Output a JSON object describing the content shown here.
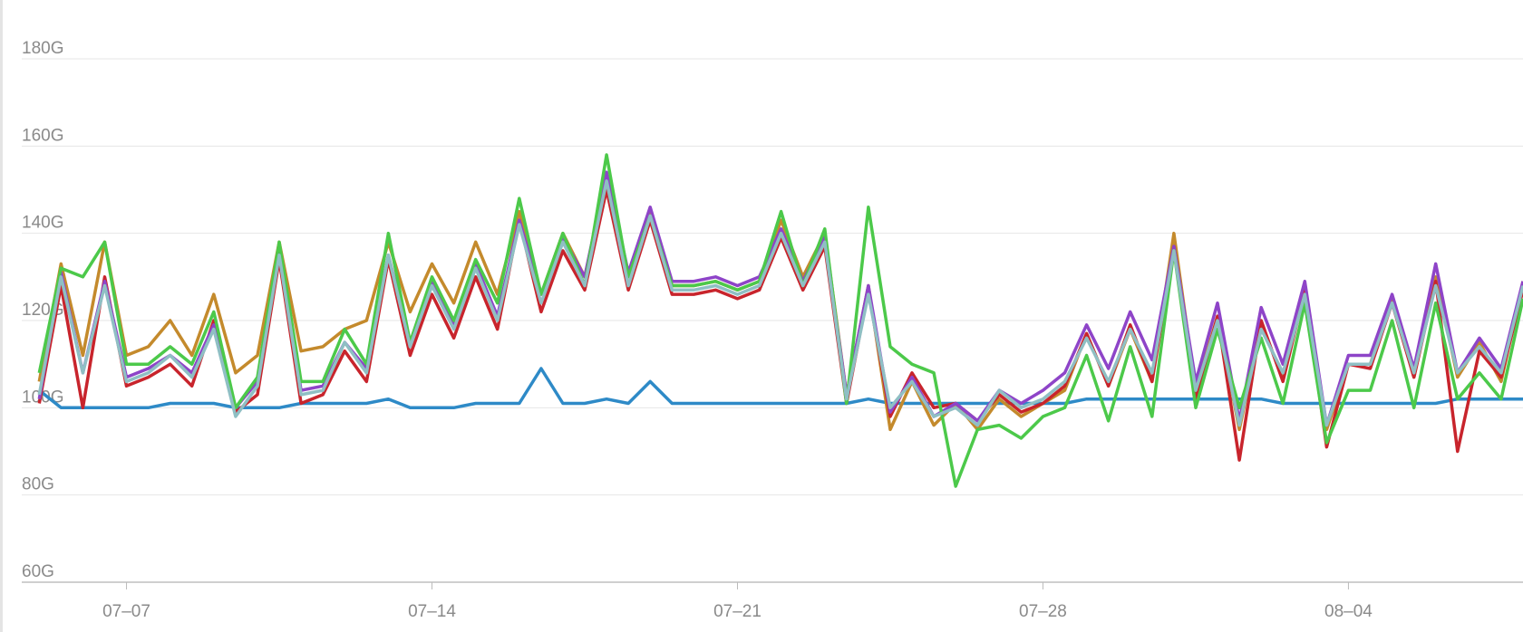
{
  "chart_data": {
    "type": "line",
    "x": [
      5,
      5.5,
      6,
      6.5,
      7,
      7.5,
      8,
      8.5,
      9,
      9.5,
      10,
      10.5,
      11,
      11.5,
      12,
      12.5,
      13,
      13.5,
      14,
      14.5,
      15,
      15.5,
      16,
      16.5,
      17,
      17.5,
      18,
      18.5,
      19,
      19.5,
      20,
      20.5,
      21,
      21.5,
      22,
      22.5,
      23,
      23.5,
      24,
      24.5,
      25,
      25.5,
      26,
      26.5,
      27,
      27.5,
      28,
      28.5,
      29,
      29.5,
      30,
      30.5,
      31,
      31.5,
      32,
      32.5,
      33,
      33.5,
      34,
      34.5,
      35,
      35.5,
      36,
      36.5,
      37,
      37.5,
      38,
      38.5,
      39
    ],
    "series": [
      {
        "color": "#2e8ac7",
        "values": [
          104,
          100,
          100,
          100,
          100,
          100,
          101,
          101,
          101,
          100,
          100,
          100,
          101,
          101,
          101,
          101,
          102,
          100,
          100,
          100,
          101,
          101,
          101,
          109,
          101,
          101,
          102,
          101,
          106,
          101,
          101,
          101,
          101,
          101,
          101,
          101,
          101,
          101,
          102,
          101,
          101,
          101,
          101,
          101,
          101,
          101,
          101,
          101,
          102,
          102,
          102,
          102,
          102,
          102,
          102,
          102,
          102,
          101,
          101,
          101,
          101,
          101,
          101,
          101,
          101,
          102,
          102,
          102,
          102
        ]
      },
      {
        "color": "#c48a2c",
        "values": [
          106,
          133,
          112,
          138,
          112,
          114,
          120,
          112,
          126,
          108,
          112,
          138,
          113,
          114,
          118,
          120,
          138,
          122,
          133,
          124,
          138,
          126,
          145,
          126,
          140,
          130,
          153,
          130,
          145,
          128,
          128,
          129,
          127,
          129,
          143,
          130,
          140,
          103,
          128,
          95,
          106,
          96,
          101,
          95,
          102,
          98,
          101,
          104,
          117,
          105,
          118,
          106,
          140,
          104,
          121,
          95,
          119,
          107,
          128,
          95,
          110,
          110,
          125,
          107,
          130,
          107,
          115,
          106,
          129
        ]
      },
      {
        "color": "#c8242c",
        "values": [
          101,
          128,
          100,
          130,
          105,
          107,
          110,
          105,
          120,
          99,
          103,
          134,
          101,
          103,
          113,
          106,
          134,
          112,
          126,
          116,
          130,
          118,
          143,
          122,
          136,
          127,
          150,
          127,
          143,
          126,
          126,
          127,
          125,
          127,
          139,
          127,
          137,
          101,
          127,
          98,
          108,
          100,
          101,
          97,
          103,
          99,
          101,
          105,
          117,
          105,
          119,
          106,
          137,
          102,
          121,
          88,
          120,
          106,
          127,
          91,
          110,
          109,
          124,
          107,
          129,
          90,
          113,
          107,
          127
        ]
      },
      {
        "color": "#8e44c8",
        "values": [
          102,
          131,
          108,
          129,
          107,
          109,
          112,
          108,
          119,
          100,
          106,
          136,
          104,
          105,
          115,
          109,
          135,
          115,
          129,
          119,
          133,
          121,
          143,
          126,
          139,
          130,
          154,
          131,
          146,
          129,
          129,
          130,
          128,
          130,
          141,
          129,
          139,
          103,
          128,
          99,
          107,
          98,
          101,
          97,
          104,
          101,
          104,
          108,
          119,
          109,
          122,
          111,
          137,
          106,
          124,
          97,
          123,
          110,
          129,
          96,
          112,
          112,
          126,
          109,
          133,
          108,
          116,
          109,
          129
        ]
      },
      {
        "color": "#4cc94a",
        "values": [
          108,
          132,
          130,
          138,
          110,
          110,
          114,
          110,
          122,
          100,
          107,
          138,
          106,
          106,
          118,
          110,
          140,
          115,
          130,
          120,
          134,
          124,
          148,
          126,
          140,
          128,
          158,
          130,
          144,
          128,
          128,
          129,
          127,
          129,
          145,
          128,
          141,
          101,
          146,
          114,
          110,
          108,
          82,
          95,
          96,
          93,
          98,
          100,
          112,
          97,
          114,
          98,
          136,
          100,
          118,
          100,
          116,
          101,
          124,
          92,
          104,
          104,
          120,
          100,
          124,
          102,
          108,
          102,
          125
        ]
      },
      {
        "color": "#8fbfc4",
        "values": [
          103,
          130,
          108,
          128,
          106,
          108,
          112,
          107,
          118,
          98,
          105,
          135,
          103,
          104,
          115,
          108,
          135,
          114,
          128,
          118,
          132,
          120,
          142,
          124,
          138,
          128,
          152,
          128,
          144,
          127,
          127,
          128,
          126,
          128,
          140,
          128,
          138,
          102,
          126,
          100,
          106,
          98,
          100,
          96,
          104,
          100,
          102,
          106,
          116,
          106,
          118,
          108,
          136,
          104,
          120,
          96,
          118,
          108,
          126,
          96,
          110,
          110,
          124,
          108,
          128,
          108,
          114,
          108,
          128
        ]
      }
    ],
    "xlim": [
      4.6,
      39
    ],
    "xticks": [
      {
        "value": 7,
        "label": "07–07"
      },
      {
        "value": 14,
        "label": "07–14"
      },
      {
        "value": 21,
        "label": "07–21"
      },
      {
        "value": 28,
        "label": "07–28"
      },
      {
        "value": 35,
        "label": "08–04"
      }
    ],
    "ylim": [
      60,
      180
    ],
    "yticks": [
      {
        "value": 60,
        "label": "60G"
      },
      {
        "value": 80,
        "label": "80G"
      },
      {
        "value": 100,
        "label": "100G"
      },
      {
        "value": 120,
        "label": "120G"
      },
      {
        "value": 140,
        "label": "140G"
      },
      {
        "value": 160,
        "label": "160G"
      },
      {
        "value": 180,
        "label": "180G"
      }
    ],
    "grid": true
  }
}
